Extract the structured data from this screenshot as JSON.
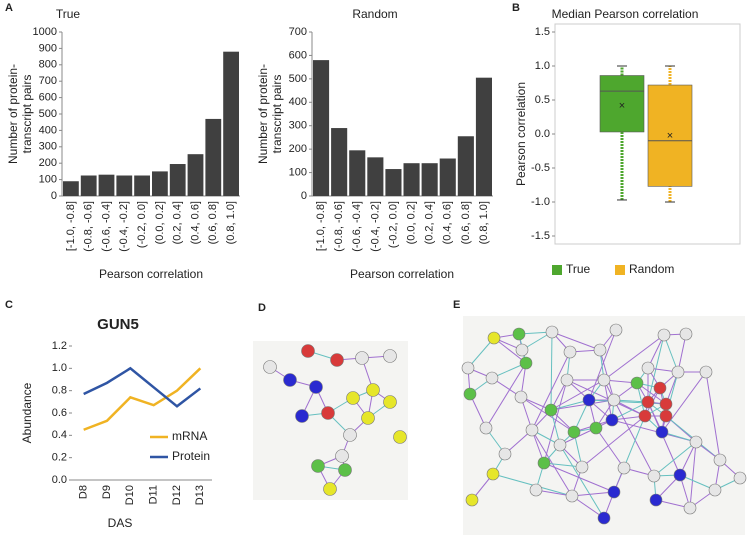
{
  "chart_data": [
    {
      "type": "bar",
      "label": "A",
      "title": "True",
      "xlabel": "Pearson correlation",
      "ylabel": [
        "Number of protein-",
        "transcript pairs"
      ],
      "categories": [
        "[-1.0, -0.8]",
        "(-0.8, -0.6]",
        "(-0.6, -0.4]",
        "(-0.4, -0.2]",
        "(-0.2, 0.0]",
        "(0.0, 0.2]",
        "(0.2, 0.4]",
        "(0.4, 0.6]",
        "(0.6, 0.8]",
        "(0.8, 1.0]"
      ],
      "values": [
        90,
        125,
        130,
        125,
        125,
        150,
        195,
        255,
        470,
        880
      ],
      "color": "#404040",
      "ylim": [
        0,
        1000
      ],
      "yticks": [
        0,
        100,
        200,
        300,
        400,
        500,
        600,
        700,
        800,
        900,
        1000
      ]
    },
    {
      "type": "bar",
      "title": "Random",
      "xlabel": "Pearson correlation",
      "ylabel": [
        "Number of protein-",
        "transcript pairs"
      ],
      "categories": [
        "[-1.0, -0.8]",
        "(-0.8, -0.6]",
        "(-0.6, -0.4]",
        "(-0.4, -0.2]",
        "(-0.2, 0.0]",
        "(0.0, 0.2]",
        "(0.2, 0.4]",
        "(0.4, 0.6]",
        "(0.6, 0.8]",
        "(0.8, 1.0]"
      ],
      "values": [
        580,
        290,
        195,
        165,
        115,
        140,
        140,
        160,
        255,
        505
      ],
      "color": "#404040",
      "ylim": [
        0,
        700
      ],
      "yticks": [
        0,
        100,
        200,
        300,
        400,
        500,
        600,
        700
      ]
    },
    {
      "type": "box",
      "label": "B",
      "title": "Median Pearson correlation",
      "ylabel": "Pearson correlation",
      "series": [
        {
          "name": "True",
          "color": "#4ea72e",
          "min": -0.97,
          "q1": 0.03,
          "median": 0.63,
          "q3": 0.86,
          "max": 1.0,
          "mean": 0.41
        },
        {
          "name": "Random",
          "color": "#f0b323",
          "min": -1.0,
          "q1": -0.77,
          "median": -0.1,
          "q3": 0.72,
          "max": 1.0,
          "mean": -0.03
        }
      ],
      "ylim": [
        -1.5,
        1.5
      ],
      "yticks": [
        -1.5,
        {
          "value": -1,
          "label": "-1.0"
        },
        -0.5,
        {
          "value": 0,
          "label": "0.0"
        },
        0.5,
        {
          "value": 1,
          "label": "1.0"
        },
        1.5
      ],
      "legend": "bottom"
    },
    {
      "type": "line",
      "label": "C",
      "title": "GUN5",
      "xlabel": "DAS",
      "ylabel": "Abundance",
      "categories": [
        "D8",
        "D9",
        "D10",
        "D11",
        "D12",
        "D13"
      ],
      "series": [
        {
          "name": "mRNA",
          "color": "#f0b323",
          "values": [
            0.45,
            0.53,
            0.74,
            0.67,
            0.8,
            1.0
          ]
        },
        {
          "name": "Protein",
          "color": "#2f55a4",
          "values": [
            0.77,
            0.87,
            1.0,
            0.83,
            0.66,
            0.82
          ]
        }
      ],
      "ylim": [
        0,
        1.2
      ],
      "yticks": [
        {
          "value": 0,
          "label": "0.0"
        },
        0.2,
        0.4,
        0.6,
        0.8,
        {
          "value": 1,
          "label": "1.0"
        },
        1.2
      ],
      "legend": "lower right"
    },
    {
      "type": "network",
      "label": "D"
    },
    {
      "type": "network",
      "label": "E"
    }
  ]
}
